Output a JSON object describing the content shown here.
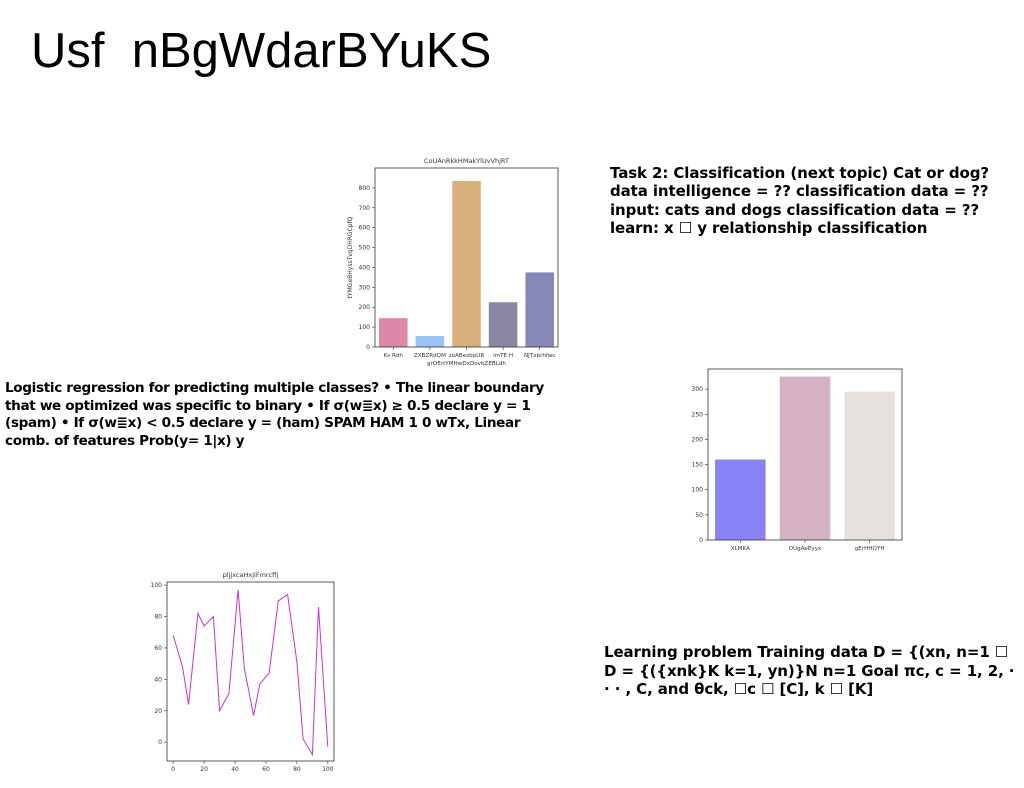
{
  "slide": {
    "title": "Usf  nBgWdarBYuKS",
    "para1": "Task 2: Classification (next topic) Cat or dog? data intelligence = ?? classification data = ?? input: cats and dogs classification data = ?? learn: x ☐ y relationship classification",
    "para2": "Logistic regression for predicting multiple classes? • The linear boundary that we optimized was specific to binary • If σ(w≣x) ≥ 0.5 declare y = 1 (spam) • If σ(w≣x) < 0.5 declare y = (ham) SPAM HAM 1 0 wTx, Linear comb. of features Prob(y= 1|x) y",
    "para3": "Learning problem Training data D = {(xn, n=1 ☐ D = {({xnk}K k=1, yn)}N n=1 Goal πc, c = 1, 2, · · · , C, and θck, ☐c ☐ [C], k ☐ [K]"
  },
  "chart_data": [
    {
      "type": "bar",
      "title": "CoUAnRkkHMakYlUvVhjRT",
      "xlabel": "grOErtYMHwDxDovbZEBLdh",
      "ylabel": "tYMGeBHyssTvqDHRGCpfQ",
      "categories": [
        "Ks Rdh",
        "ZXBZRdQM",
        "zoABezbpUR",
        "imTE H",
        "NJTxbrhfwc"
      ],
      "values": [
        145,
        55,
        835,
        225,
        375
      ],
      "colors": [
        "#dd88a8",
        "#99c2f5",
        "#d9b07c",
        "#8a87a5",
        "#8888b8"
      ],
      "ylim": [
        0,
        900
      ],
      "yticks": [
        0,
        100,
        200,
        300,
        400,
        500,
        600,
        700,
        800
      ]
    },
    {
      "type": "bar",
      "title": "",
      "xlabel": "",
      "ylabel": "",
      "categories": [
        "XLMKA",
        "OUgAeEyyx",
        "gErHHQYH"
      ],
      "values": [
        160,
        325,
        295
      ],
      "colors": [
        "#8882f5",
        "#d4b1c3",
        "#e6e1dd"
      ],
      "ylim": [
        0,
        340
      ],
      "yticks": [
        0,
        50,
        100,
        150,
        200,
        250,
        300
      ]
    },
    {
      "type": "line",
      "title": "pljjxcaHxjiFmrcffj",
      "xlabel": "",
      "ylabel": "",
      "x": [
        0,
        6,
        10,
        16,
        20,
        26,
        30,
        36,
        42,
        46,
        52,
        56,
        62,
        68,
        74,
        80,
        84,
        90,
        94,
        100
      ],
      "y": [
        68,
        48,
        24,
        82,
        74,
        80,
        20,
        31,
        97,
        47,
        17,
        37,
        44,
        90,
        94,
        51,
        2,
        -8,
        86,
        -3
      ],
      "color": "#cc33cc",
      "xlim": [
        -4,
        104
      ],
      "ylim": [
        -12,
        102
      ],
      "xticks": [
        0,
        20,
        40,
        60,
        80,
        100
      ],
      "yticks": [
        0,
        20,
        40,
        60,
        80,
        100
      ]
    }
  ]
}
